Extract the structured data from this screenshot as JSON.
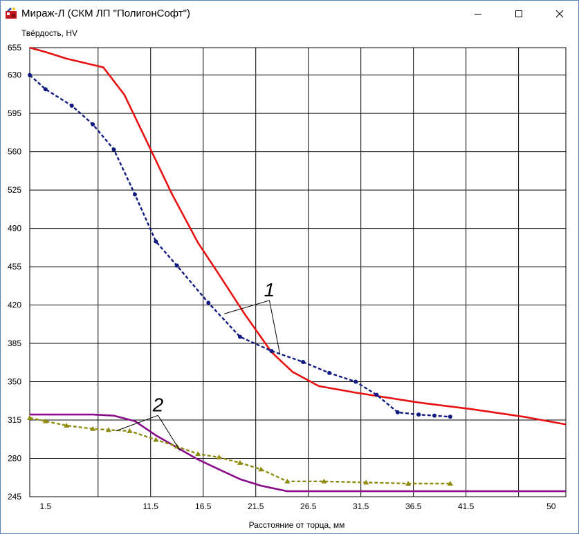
{
  "window": {
    "title": "Мираж-Л (СКМ ЛП \"ПолигонСофт\")",
    "icons": {
      "app": "app-icon",
      "minimize": "minimize-icon",
      "maximize": "maximize-icon",
      "close": "close-icon"
    }
  },
  "chart_data": {
    "type": "line",
    "ylabel": "Твёрдость, HV",
    "xlabel": "Расстояние от торца, мм",
    "xlim": [
      0,
      51
    ],
    "ylim": [
      245,
      655
    ],
    "x_ticks": [
      1.5,
      11.5,
      16.5,
      21.5,
      26.5,
      31.5,
      36.5,
      41.5,
      50
    ],
    "x_grid": [
      6.5,
      11.5,
      16.5,
      21.5,
      26.5,
      31.5,
      36.5,
      41.5,
      46.5
    ],
    "y_ticks": [
      245,
      280,
      315,
      350,
      385,
      420,
      455,
      490,
      525,
      560,
      595,
      630,
      655
    ],
    "y_grid": [
      280,
      315,
      350,
      385,
      420,
      455,
      490,
      525,
      560,
      595,
      630
    ],
    "grid": true,
    "series": [
      {
        "color": "#e81010",
        "style": "solid",
        "marker": "none",
        "points": [
          [
            0,
            655
          ],
          [
            1.5,
            651
          ],
          [
            3.5,
            645
          ],
          [
            7,
            637
          ],
          [
            9,
            612
          ],
          [
            11.5,
            562
          ],
          [
            13.5,
            522
          ],
          [
            16,
            477
          ],
          [
            18,
            448
          ],
          [
            20.5,
            411
          ],
          [
            23,
            377
          ],
          [
            25,
            359
          ],
          [
            27.5,
            346
          ],
          [
            31,
            340
          ],
          [
            37,
            331
          ],
          [
            42,
            325
          ],
          [
            47,
            318
          ],
          [
            51,
            311
          ]
        ]
      },
      {
        "color": "#101a80",
        "style": "dashed",
        "marker": "circle",
        "points": [
          [
            0,
            630
          ],
          [
            1.5,
            617
          ],
          [
            4,
            602
          ],
          [
            6,
            585
          ],
          [
            8,
            562
          ],
          [
            10,
            521
          ],
          [
            12,
            478
          ],
          [
            14,
            456
          ],
          [
            17,
            422
          ],
          [
            20,
            391
          ],
          [
            23,
            378
          ],
          [
            26,
            368
          ],
          [
            28.5,
            358
          ],
          [
            31,
            350
          ],
          [
            33,
            338
          ],
          [
            35,
            322
          ],
          [
            37,
            320
          ],
          [
            38.5,
            319
          ],
          [
            40,
            318
          ]
        ]
      },
      {
        "color": "#8a0b8a",
        "style": "solid",
        "marker": "none",
        "points": [
          [
            0,
            320
          ],
          [
            3,
            320
          ],
          [
            6,
            320
          ],
          [
            8,
            319
          ],
          [
            10,
            314
          ],
          [
            12,
            301
          ],
          [
            14,
            290
          ],
          [
            16,
            279
          ],
          [
            18,
            270
          ],
          [
            20,
            261
          ],
          [
            22,
            255
          ],
          [
            24.5,
            250
          ],
          [
            51,
            250
          ]
        ]
      },
      {
        "color": "#8f8a10",
        "style": "dashed",
        "marker": "triangle",
        "points": [
          [
            0,
            317
          ],
          [
            1.5,
            314
          ],
          [
            3.5,
            310
          ],
          [
            6,
            307
          ],
          [
            7.5,
            306
          ],
          [
            9.5,
            305
          ],
          [
            12,
            297
          ],
          [
            14,
            291
          ],
          [
            16,
            284
          ],
          [
            18,
            281
          ],
          [
            20,
            276
          ],
          [
            22,
            270
          ],
          [
            24.5,
            259
          ],
          [
            28,
            259
          ],
          [
            32,
            258
          ],
          [
            36,
            257
          ],
          [
            40,
            257
          ]
        ]
      }
    ],
    "annotations": [
      {
        "text": "1",
        "x": 22.8,
        "y": 428,
        "targets": [
          [
            18.5,
            412
          ],
          [
            23.8,
            375
          ]
        ]
      },
      {
        "text": "2",
        "x": 12.2,
        "y": 323,
        "targets": [
          [
            8.2,
            305
          ],
          [
            14.3,
            287
          ]
        ]
      }
    ]
  }
}
